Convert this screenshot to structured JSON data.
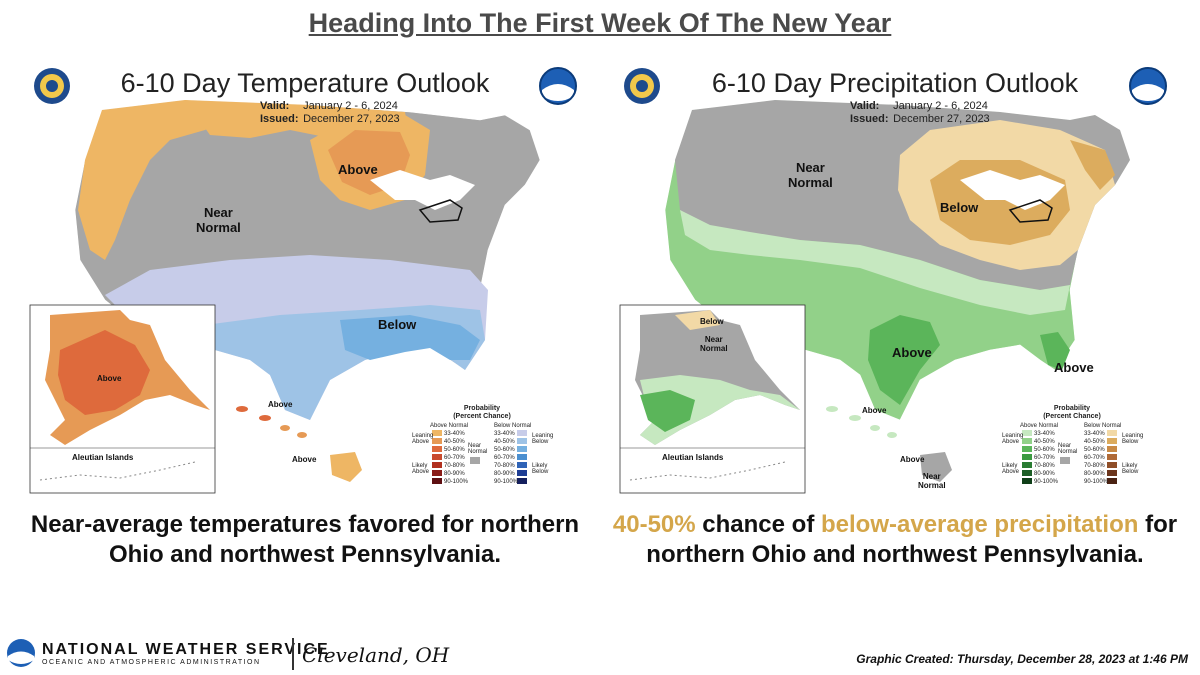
{
  "heading": "Heading Into The First Week Of The New Year",
  "colors": {
    "above_leaning": "#eeb664",
    "above_4050": "#e69a55",
    "above_5060": "#de6a3c",
    "near_normal": "#a6a6a6",
    "below_leaning": "#c7cce9",
    "below_4050": "#9ec3e6",
    "below_5060": "#75b0e0",
    "precip_above_leaning": "#c6e8c0",
    "precip_above_4050": "#92d189",
    "precip_above_5060": "#5bb55a",
    "precip_below_leaning": "#f2d9a6",
    "precip_below_4050": "#dcac5e",
    "highlight": "#d4a64a"
  },
  "temperature": {
    "title": "6-10 Day Temperature Outlook",
    "valid_label": "Valid:",
    "valid_value": "January 2 - 6, 2024",
    "issued_label": "Issued:",
    "issued_value": "December 27, 2023",
    "labels": {
      "above_north": "Above",
      "near_normal_1": "Near",
      "near_normal_2": "Normal",
      "below_south": "Below",
      "alaska_above": "Above",
      "aleutian": "Aleutian Islands",
      "hawaii_above_1": "Above",
      "hawaii_above_2": "Above"
    },
    "caption": "Near-average temperatures favored for northern Ohio and northwest Pennsylvania."
  },
  "precipitation": {
    "title": "6-10 Day Precipitation Outlook",
    "valid_label": "Valid:",
    "valid_value": "January 2 - 6, 2024",
    "issued_label": "Issued:",
    "issued_value": "December 27, 2023",
    "labels": {
      "near_normal_1": "Near",
      "near_normal_2": "Normal",
      "below_greatlakes": "Below",
      "above_texas": "Above",
      "above_florida": "Above",
      "alaska_below": "Below",
      "alaska_near_1": "Near",
      "alaska_near_2": "Normal",
      "aleutian": "Aleutian Islands",
      "hawaii_above_1": "Above",
      "hawaii_above_2": "Above",
      "hawaii_near_1": "Near",
      "hawaii_near_2": "Normal"
    },
    "caption_parts": {
      "p1": "40-50%",
      "p2": " chance of ",
      "p3": "below-average precipitation",
      "p4": " for northern Ohio and northwest Pennsylvania."
    }
  },
  "legend": {
    "title_1": "Probability",
    "title_2": "(Percent Chance)",
    "col_above": "Above Normal",
    "col_below": "Below Normal",
    "leaning_above_1": "Leaning",
    "leaning_above_2": "Above",
    "likely_above_1": "Likely",
    "likely_above_2": "Above",
    "leaning_below_1": "Leaning",
    "leaning_below_2": "Below",
    "likely_below_1": "Likely",
    "likely_below_2": "Below",
    "near_1": "Near",
    "near_2": "Normal",
    "ranges": [
      "33-40%",
      "40-50%",
      "50-60%",
      "60-70%",
      "70-80%",
      "80-90%",
      "90-100%"
    ]
  },
  "footer": {
    "agency": "NATIONAL WEATHER SERVICE",
    "sub": "OCEANIC AND ATMOSPHERIC ADMINISTRATION",
    "office": "Cleveland, OH",
    "created": "Graphic Created: Thursday, December 28, 2023 at 1:46 PM"
  }
}
